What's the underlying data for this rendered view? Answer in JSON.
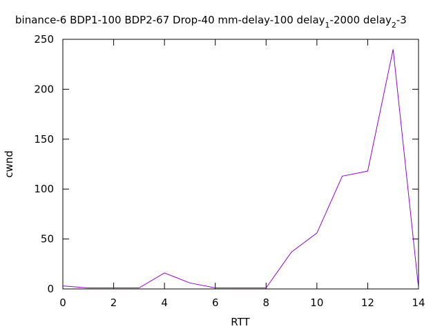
{
  "chart_data": {
    "type": "line",
    "title": {
      "main": "binance-6 BDP1-100 BDP2-67 Drop-40 mm-delay-100 delay",
      "sub1": "1",
      "mid": "-2000 delay",
      "sub2": "2",
      "tail": "-3"
    },
    "xlabel": "RTT",
    "ylabel": "cwnd",
    "xlim": [
      0,
      14
    ],
    "ylim": [
      0,
      250
    ],
    "x_ticks": [
      0,
      2,
      4,
      6,
      8,
      10,
      12,
      14
    ],
    "y_ticks": [
      0,
      50,
      100,
      150,
      200,
      250
    ],
    "grid": false,
    "series": [
      {
        "color": "#9400d3",
        "x": [
          0,
          1,
          2,
          3,
          4,
          5,
          6,
          7,
          8,
          9,
          10,
          11,
          12,
          13,
          14
        ],
        "values": [
          3,
          1,
          1,
          1,
          16,
          6,
          1,
          1,
          1,
          37,
          56,
          113,
          118,
          240,
          1
        ]
      }
    ]
  }
}
